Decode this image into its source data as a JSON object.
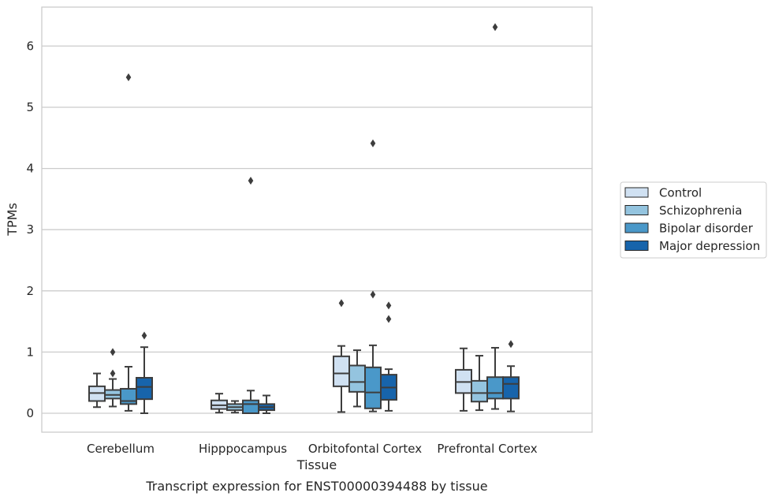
{
  "chart_data": {
    "type": "box",
    "title": "",
    "caption": "Transcript expression for ENST00000394488 by tissue",
    "xlabel": "Tissue",
    "ylabel": "TPMs",
    "ylim": [
      -0.3,
      6.65
    ],
    "yticks": [
      "0",
      "1",
      "2",
      "3",
      "4",
      "5",
      "6"
    ],
    "grid": "horizontal",
    "legend_position": "right",
    "categories": [
      "Cerebellum",
      "Hipppocampus",
      "Orbitofontal Cortex",
      "Prefrontal Cortex"
    ],
    "series": [
      {
        "name": "Control",
        "color": "#d0e1f2",
        "boxes": [
          {
            "whislo": 0.1,
            "q1": 0.2,
            "med": 0.33,
            "q3": 0.44,
            "whishi": 0.65,
            "fliers": []
          },
          {
            "whislo": 0.01,
            "q1": 0.07,
            "med": 0.13,
            "q3": 0.21,
            "whishi": 0.32,
            "fliers": []
          },
          {
            "whislo": 0.02,
            "q1": 0.44,
            "med": 0.65,
            "q3": 0.93,
            "whishi": 1.1,
            "fliers": [
              1.8
            ]
          },
          {
            "whislo": 0.04,
            "q1": 0.33,
            "med": 0.51,
            "q3": 0.71,
            "whishi": 1.06,
            "fliers": []
          }
        ]
      },
      {
        "name": "Schizophrenia",
        "color": "#94c4df",
        "boxes": [
          {
            "whislo": 0.11,
            "q1": 0.24,
            "med": 0.3,
            "q3": 0.38,
            "whishi": 0.56,
            "fliers": [
              1.0,
              0.65
            ]
          },
          {
            "whislo": 0.01,
            "q1": 0.05,
            "med": 0.1,
            "q3": 0.15,
            "whishi": 0.2,
            "fliers": []
          },
          {
            "whislo": 0.11,
            "q1": 0.35,
            "med": 0.51,
            "q3": 0.78,
            "whishi": 1.03,
            "fliers": []
          },
          {
            "whislo": 0.05,
            "q1": 0.19,
            "med": 0.33,
            "q3": 0.53,
            "whishi": 0.94,
            "fliers": []
          }
        ]
      },
      {
        "name": "Bipolar disorder",
        "color": "#4a98c9",
        "boxes": [
          {
            "whislo": 0.04,
            "q1": 0.15,
            "med": 0.2,
            "q3": 0.4,
            "whishi": 0.76,
            "fliers": [
              5.49
            ]
          },
          {
            "whislo": 0.0,
            "q1": 0.0,
            "med": 0.15,
            "q3": 0.21,
            "whishi": 0.37,
            "fliers": [
              3.8
            ]
          },
          {
            "whislo": 0.03,
            "q1": 0.08,
            "med": 0.34,
            "q3": 0.75,
            "whishi": 1.11,
            "fliers": [
              4.41,
              1.94
            ]
          },
          {
            "whislo": 0.07,
            "q1": 0.24,
            "med": 0.33,
            "q3": 0.59,
            "whishi": 1.07,
            "fliers": [
              6.31
            ]
          }
        ]
      },
      {
        "name": "Major depression",
        "color": "#1764ab",
        "boxes": [
          {
            "whislo": 0.0,
            "q1": 0.23,
            "med": 0.43,
            "q3": 0.58,
            "whishi": 1.08,
            "fliers": [
              1.27
            ]
          },
          {
            "whislo": 0.0,
            "q1": 0.05,
            "med": 0.1,
            "q3": 0.15,
            "whishi": 0.29,
            "fliers": []
          },
          {
            "whislo": 0.04,
            "q1": 0.22,
            "med": 0.42,
            "q3": 0.63,
            "whishi": 0.72,
            "fliers": [
              1.76,
              1.54
            ]
          },
          {
            "whislo": 0.03,
            "q1": 0.24,
            "med": 0.48,
            "q3": 0.59,
            "whishi": 0.77,
            "fliers": [
              1.13
            ]
          }
        ]
      }
    ]
  }
}
